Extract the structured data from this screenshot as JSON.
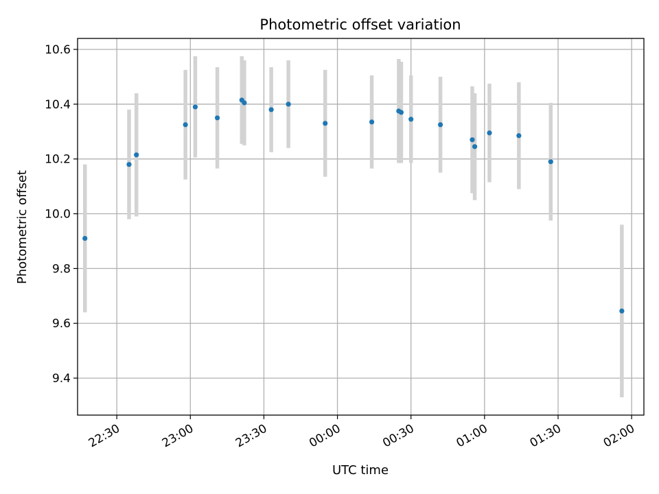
{
  "chart_data": {
    "type": "scatter",
    "title": "Photometric offset variation",
    "xlabel": "UTC time",
    "ylabel": "Photometric offset",
    "x_tick_labels": [
      "22:30",
      "23:00",
      "23:30",
      "00:00",
      "00:30",
      "01:00",
      "01:30",
      "02:00"
    ],
    "y_tick_labels": [
      "9.4",
      "9.6",
      "9.8",
      "10.0",
      "10.2",
      "10.4",
      "10.6"
    ],
    "y_ticks": [
      9.4,
      9.6,
      9.8,
      10.0,
      10.2,
      10.4,
      10.6
    ],
    "xlim": [
      "22:14",
      "02:05"
    ],
    "ylim": [
      9.265,
      10.64
    ],
    "grid": true,
    "point_color": "#1f77b4",
    "errorbar_color": "#d3d3d3",
    "points": [
      {
        "x": "22:17",
        "y": 9.91,
        "err": 0.27
      },
      {
        "x": "22:35",
        "y": 10.18,
        "err": 0.2
      },
      {
        "x": "22:38",
        "y": 10.215,
        "err": 0.225
      },
      {
        "x": "22:58",
        "y": 10.325,
        "err": 0.2
      },
      {
        "x": "23:02",
        "y": 10.39,
        "err": 0.185
      },
      {
        "x": "23:11",
        "y": 10.35,
        "err": 0.185
      },
      {
        "x": "23:21",
        "y": 10.415,
        "err": 0.16
      },
      {
        "x": "23:22",
        "y": 10.405,
        "err": 0.155
      },
      {
        "x": "23:33",
        "y": 10.38,
        "err": 0.155
      },
      {
        "x": "23:40",
        "y": 10.4,
        "err": 0.16
      },
      {
        "x": "23:55",
        "y": 10.33,
        "err": 0.195
      },
      {
        "x": "00:14",
        "y": 10.335,
        "err": 0.17
      },
      {
        "x": "00:25",
        "y": 10.375,
        "err": 0.19
      },
      {
        "x": "00:26",
        "y": 10.37,
        "err": 0.185
      },
      {
        "x": "00:30",
        "y": 10.345,
        "err": 0.16
      },
      {
        "x": "00:42",
        "y": 10.325,
        "err": 0.175
      },
      {
        "x": "00:55",
        "y": 10.27,
        "err": 0.195
      },
      {
        "x": "00:56",
        "y": 10.245,
        "err": 0.195
      },
      {
        "x": "01:02",
        "y": 10.295,
        "err": 0.18
      },
      {
        "x": "01:14",
        "y": 10.285,
        "err": 0.195
      },
      {
        "x": "01:27",
        "y": 10.19,
        "err": 0.215
      },
      {
        "x": "01:56",
        "y": 9.645,
        "err": 0.315
      }
    ]
  }
}
